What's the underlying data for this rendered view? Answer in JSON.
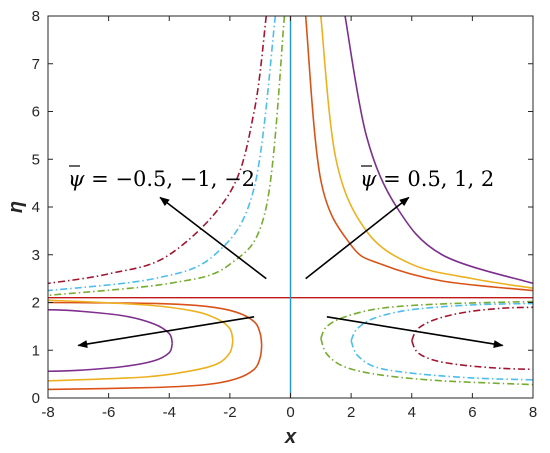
{
  "chart_data": {
    "type": "line",
    "title": "",
    "xlabel": "x",
    "ylabel": "η",
    "xlim": [
      -8,
      8
    ],
    "ylim": [
      0,
      8
    ],
    "xticks": [
      -8,
      -6,
      -4,
      -2,
      0,
      2,
      4,
      6,
      8
    ],
    "yticks": [
      0,
      1,
      2,
      3,
      4,
      5,
      6,
      7,
      8
    ],
    "grid": false,
    "legend": "none",
    "separatrix": {
      "eta": 2.1,
      "colors": {
        "horizontal": "#c01818",
        "vertical": "#1f96d6"
      }
    },
    "annotations": [
      {
        "prefix": "ψ",
        "text": " = −0.5, −1, −2"
      },
      {
        "prefix": "ψ",
        "text": " = 0.5, 1, 2"
      }
    ],
    "series": [
      {
        "color": "#d95319",
        "dash": "solid",
        "branches": [
          {
            "x": [
              0.5,
              1.0,
              2.0,
              3.0,
              5.0,
              8.0
            ],
            "y": [
              8.0,
              4.56,
              3.2,
              2.8,
              2.45,
              2.25
            ]
          },
          {
            "x": [
              -0.95,
              -1.0,
              -1.2,
              -1.8,
              -2.8,
              -4.5,
              -8.0
            ],
            "y": [
              1.1,
              1.35,
              1.6,
              1.8,
              1.92,
              1.98,
              2.0
            ]
          },
          {
            "x": [
              -0.95,
              -1.0,
              -1.2,
              -1.8,
              -2.8,
              -4.5,
              -8.0
            ],
            "y": [
              1.1,
              0.85,
              0.6,
              0.4,
              0.28,
              0.22,
              0.18
            ]
          }
        ]
      },
      {
        "color": "#edb120",
        "dash": "solid",
        "branches": [
          {
            "x": [
              1.0,
              1.5,
              2.5,
              4.0,
              6.0,
              8.0
            ],
            "y": [
              8.0,
              5.0,
              3.5,
              2.8,
              2.5,
              2.3
            ]
          },
          {
            "x": [
              -1.9,
              -2.0,
              -2.4,
              -3.2,
              -4.8,
              -8.0
            ],
            "y": [
              1.2,
              1.45,
              1.65,
              1.82,
              1.95,
              2.05
            ]
          },
          {
            "x": [
              -1.9,
              -2.0,
              -2.4,
              -3.2,
              -4.8,
              -8.0
            ],
            "y": [
              1.2,
              0.95,
              0.72,
              0.58,
              0.44,
              0.36
            ]
          }
        ]
      },
      {
        "color": "#7e2f8e",
        "dash": "solid",
        "branches": [
          {
            "x": [
              1.8,
              2.5,
              3.5,
              5.0,
              8.0
            ],
            "y": [
              8.0,
              5.5,
              4.0,
              3.0,
              2.4
            ]
          },
          {
            "x": [
              -3.9,
              -4.0,
              -4.5,
              -5.5,
              -7.0,
              -8.0
            ],
            "y": [
              1.15,
              1.35,
              1.55,
              1.72,
              1.82,
              1.85
            ]
          },
          {
            "x": [
              -3.9,
              -4.0,
              -4.5,
              -5.5,
              -7.0,
              -8.0
            ],
            "y": [
              1.15,
              0.95,
              0.78,
              0.66,
              0.58,
              0.56
            ]
          }
        ]
      },
      {
        "color": "#77ac30",
        "dash": "dashdot",
        "branches": [
          {
            "x": [
              -0.2,
              -0.8,
              -2.0,
              -4.0,
              -8.0
            ],
            "y": [
              8.0,
              4.0,
              2.8,
              2.4,
              2.15
            ]
          },
          {
            "x": [
              1.0,
              1.2,
              1.8,
              3.0,
              5.0,
              8.0
            ],
            "y": [
              1.25,
              1.5,
              1.7,
              1.88,
              1.97,
              2.02
            ]
          },
          {
            "x": [
              1.0,
              1.2,
              1.8,
              3.0,
              5.0,
              8.0
            ],
            "y": [
              1.25,
              0.92,
              0.65,
              0.48,
              0.36,
              0.28
            ]
          }
        ]
      },
      {
        "color": "#4dbeee",
        "dash": "dashdot",
        "branches": [
          {
            "x": [
              -0.5,
              -1.2,
              -2.5,
              -4.5,
              -8.0
            ],
            "y": [
              8.0,
              4.4,
              3.0,
              2.5,
              2.25
            ]
          },
          {
            "x": [
              2.0,
              2.2,
              2.8,
              4.0,
              6.0,
              8.0
            ],
            "y": [
              1.2,
              1.45,
              1.68,
              1.85,
              1.95,
              1.98
            ]
          },
          {
            "x": [
              2.0,
              2.2,
              2.8,
              4.0,
              6.0,
              8.0
            ],
            "y": [
              1.2,
              0.9,
              0.65,
              0.52,
              0.42,
              0.38
            ]
          }
        ]
      },
      {
        "color": "#a2142f",
        "dash": "dashdot",
        "branches": [
          {
            "x": [
              -0.8,
              -1.2,
              -2.0,
              -4.0,
              -6.0,
              -8.0
            ],
            "y": [
              8.0,
              6.0,
              4.3,
              3.0,
              2.6,
              2.4
            ]
          },
          {
            "x": [
              4.0,
              4.2,
              4.8,
              5.8,
              7.0,
              8.0
            ],
            "y": [
              1.2,
              1.45,
              1.65,
              1.8,
              1.88,
              1.9
            ]
          },
          {
            "x": [
              4.0,
              4.2,
              4.8,
              5.8,
              7.0,
              8.0
            ],
            "y": [
              1.2,
              0.95,
              0.78,
              0.68,
              0.62,
              0.6
            ]
          }
        ]
      }
    ],
    "arrows": [
      {
        "from": [
          -0.8,
          2.5
        ],
        "to": [
          -4.3,
          4.2
        ]
      },
      {
        "from": [
          0.5,
          2.5
        ],
        "to": [
          3.9,
          4.2
        ]
      },
      {
        "from": [
          -1.2,
          1.7
        ],
        "to": [
          -7.0,
          1.1
        ]
      },
      {
        "from": [
          1.2,
          1.7
        ],
        "to": [
          7.0,
          1.1
        ]
      }
    ]
  }
}
